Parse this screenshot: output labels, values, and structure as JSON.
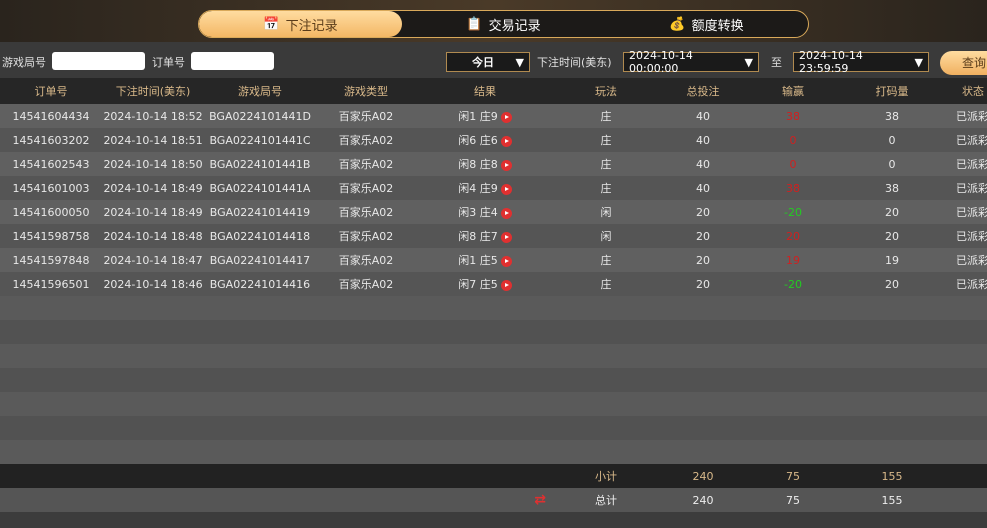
{
  "tabs": [
    {
      "label": "下注记录",
      "icon": "calendar-icon",
      "active": true
    },
    {
      "label": "交易记录",
      "icon": "clipboard-icon"
    },
    {
      "label": "额度转换",
      "icon": "coins-icon"
    }
  ],
  "filters": {
    "game_no_label": "游戏局号",
    "game_no_value": "",
    "order_no_label": "订单号",
    "order_no_value": "",
    "period": "今日",
    "time_label": "下注时间(美东)",
    "start": "2024-10-14 00:00:00",
    "to_label": "至",
    "end": "2024-10-14 23:59:59",
    "query": "查询"
  },
  "columns": [
    "订单号",
    "下注时间(美东)",
    "游戏局号",
    "游戏类型",
    "结果",
    "玩法",
    "总投注",
    "输赢",
    "打码量",
    "状态"
  ],
  "rows": [
    [
      "14541604434",
      "2024-10-14 18:52",
      "BGA0224101441D",
      "百家乐A02",
      "闲1 庄9",
      "庄",
      "40",
      "38",
      "38",
      "已派彩"
    ],
    [
      "14541603202",
      "2024-10-14 18:51",
      "BGA0224101441C",
      "百家乐A02",
      "闲6 庄6",
      "庄",
      "40",
      "0",
      "0",
      "已派彩"
    ],
    [
      "14541602543",
      "2024-10-14 18:50",
      "BGA0224101441B",
      "百家乐A02",
      "闲8 庄8",
      "庄",
      "40",
      "0",
      "0",
      "已派彩"
    ],
    [
      "14541601003",
      "2024-10-14 18:49",
      "BGA0224101441A",
      "百家乐A02",
      "闲4 庄9",
      "庄",
      "40",
      "38",
      "38",
      "已派彩"
    ],
    [
      "14541600050",
      "2024-10-14 18:49",
      "BGA02241014419",
      "百家乐A02",
      "闲3 庄4",
      "闲",
      "20",
      "-20",
      "20",
      "已派彩"
    ],
    [
      "14541598758",
      "2024-10-14 18:48",
      "BGA02241014418",
      "百家乐A02",
      "闲8 庄7",
      "闲",
      "20",
      "20",
      "20",
      "已派彩"
    ],
    [
      "14541597848",
      "2024-10-14 18:47",
      "BGA02241014417",
      "百家乐A02",
      "闲1 庄5",
      "庄",
      "20",
      "19",
      "19",
      "已派彩"
    ],
    [
      "14541596501",
      "2024-10-14 18:46",
      "BGA02241014416",
      "百家乐A02",
      "闲7 庄5",
      "庄",
      "20",
      "-20",
      "20",
      "已派彩"
    ]
  ],
  "subtotal": {
    "label": "小计",
    "bet": "240",
    "win": "75",
    "code": "155"
  },
  "total": {
    "label": "总计",
    "bet": "240",
    "win": "75",
    "code": "155"
  },
  "colors": {
    "win": "#d02020",
    "loss": "#22cc22",
    "accent": "#f3b765"
  }
}
